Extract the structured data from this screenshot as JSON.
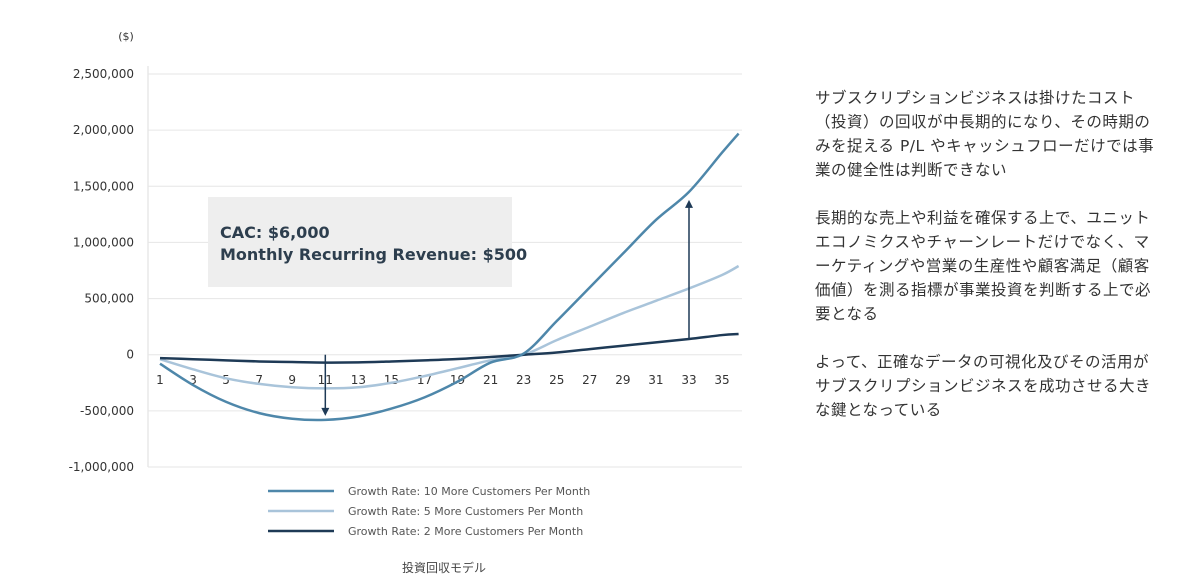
{
  "chart_data": {
    "type": "line",
    "ylabel": "($)",
    "xlabel": "投資回収モデル",
    "x_ticks": [
      1,
      3,
      5,
      7,
      9,
      11,
      13,
      15,
      17,
      19,
      21,
      23,
      25,
      27,
      29,
      31,
      33,
      35
    ],
    "y_ticks": [
      {
        "value": 2500000,
        "label": "2,500,000"
      },
      {
        "value": 2000000,
        "label": "2,000,000"
      },
      {
        "value": 1500000,
        "label": "1,500,000"
      },
      {
        "value": 1000000,
        "label": "1,000,000"
      },
      {
        "value": 500000,
        "label": "500,000"
      },
      {
        "value": 0,
        "label": "0"
      },
      {
        "value": -500000,
        "label": "-500,000"
      },
      {
        "value": -1000000,
        "label": "-1,000,000"
      }
    ],
    "ylim": [
      -1000000,
      2500000
    ],
    "xlim": [
      1,
      36
    ],
    "grid": true,
    "legend_position": "bottom",
    "series": [
      {
        "name": "Growth Rate: 10 More Customers Per Month",
        "color": "#4e87aa",
        "x": [
          1,
          3,
          5,
          7,
          9,
          11,
          13,
          15,
          17,
          19,
          21,
          23,
          25,
          27,
          29,
          31,
          33,
          35,
          36
        ],
        "values": [
          -80000,
          -270000,
          -420000,
          -520000,
          -570000,
          -580000,
          -550000,
          -480000,
          -380000,
          -240000,
          -70000,
          10000,
          300000,
          600000,
          900000,
          1200000,
          1450000,
          1800000,
          1970000
        ]
      },
      {
        "name": "Growth Rate: 5 More Customers Per Month",
        "color": "#a9c4da",
        "x": [
          1,
          3,
          5,
          7,
          9,
          11,
          13,
          15,
          17,
          19,
          21,
          23,
          25,
          27,
          29,
          31,
          33,
          35,
          36
        ],
        "values": [
          -40000,
          -130000,
          -210000,
          -260000,
          -290000,
          -300000,
          -290000,
          -250000,
          -190000,
          -120000,
          -50000,
          0,
          130000,
          250000,
          370000,
          480000,
          590000,
          710000,
          790000
        ]
      },
      {
        "name": "Growth Rate: 2 More Customers Per Month",
        "color": "#1e3a56",
        "x": [
          1,
          3,
          5,
          7,
          9,
          11,
          13,
          15,
          17,
          19,
          21,
          23,
          25,
          27,
          29,
          31,
          33,
          35,
          36
        ],
        "values": [
          -30000,
          -40000,
          -50000,
          -60000,
          -65000,
          -70000,
          -68000,
          -60000,
          -50000,
          -38000,
          -20000,
          0,
          20000,
          50000,
          80000,
          110000,
          140000,
          175000,
          185000
        ]
      }
    ],
    "annotations": {
      "cac": "CAC: $6,000",
      "mrr": "Monthly Recurring Revenue: $500",
      "arrow_down_x": 11,
      "arrow_up_x": 33
    }
  },
  "side_text": {
    "p1": "サブスクリプションビジネスは掛けたコスト（投資）の回収が中長期的になり、その時期のみを捉える P/L やキャッシュフローだけでは事業の健全性は判断できない",
    "p2": "長期的な売上や利益を確保する上で、ユニットエコノミクスやチャーンレートだけでなく、マーケティングや営業の生産性や顧客満足（顧客価値）を測る指標が事業投資を判断する上で必要となる",
    "p3": "よって、正確なデータの可視化及びその活用がサブスクリプションビジネスを成功させる大きな鍵となっている"
  }
}
